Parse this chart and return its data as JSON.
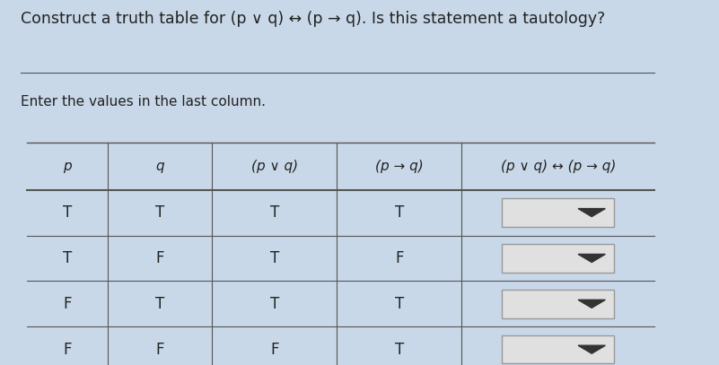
{
  "title": "Construct a truth table for (p ∨ q) ↔ (p → q). Is this statement a tautology?",
  "subtitle": "Enter the values in the last column.",
  "bg_color": "#c8d8e8",
  "header": [
    "p",
    "q",
    "(p ∨ q)",
    "(p → q)",
    "(p ∨ q) ↔ (p → q)"
  ],
  "rows": [
    [
      "T",
      "T",
      "T",
      "T"
    ],
    [
      "T",
      "F",
      "T",
      "F"
    ],
    [
      "F",
      "T",
      "T",
      "T"
    ],
    [
      "F",
      "F",
      "F",
      "T"
    ]
  ],
  "dropdown_color": "#e0e0e0",
  "dropdown_border": "#999999",
  "line_color": "#555555",
  "text_color": "#222222",
  "title_fontsize": 12.5,
  "subtitle_fontsize": 11,
  "cell_fontsize": 12,
  "header_fontsize": 11
}
